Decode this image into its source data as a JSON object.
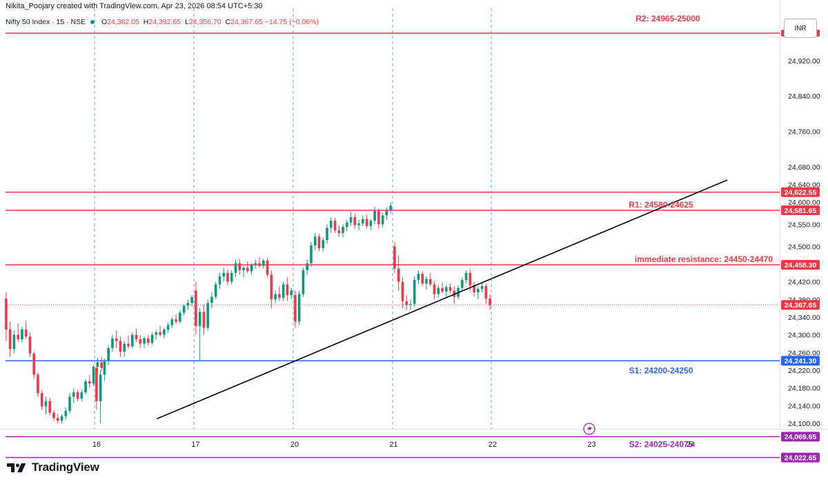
{
  "header": {
    "credit": "Nikita_Poojary created with TradingView.com, Apr 23, 2026 08:54 UTC+5:30",
    "symbol": "Nifty 50 Index · 15 · NSE",
    "ohlc": [
      {
        "k": "O",
        "v": "24,382.05"
      },
      {
        "k": "H",
        "v": "24,392.65"
      },
      {
        "k": "L",
        "v": "24,356.70"
      },
      {
        "k": "C",
        "v": "24,367.65"
      }
    ],
    "change": "−14.75 (−0.06%)"
  },
  "currency": "INR",
  "brand": {
    "name": "TradingView",
    "logo_icon": "tradingview-logo-icon"
  },
  "colors": {
    "up": "#089981",
    "down": "#F23645",
    "resistance": "#F23645",
    "support": "#2962FF",
    "support2": "#9C27B0",
    "trend": "#000000",
    "session": "#2962FF"
  },
  "chart_data": {
    "type": "candlestick",
    "interval": "15",
    "ylim": [
      24000,
      25000
    ],
    "price_ticks": [
      "24,100.00",
      "24,140.00",
      "24,180.00",
      "24,220.00",
      "24,260.00",
      "24,300.00",
      "24,340.00",
      "24,380.00",
      "24,420.00",
      "24,500.00",
      "24,550.00",
      "24,600.00",
      "24,640.00",
      "24,680.00",
      "24,760.00",
      "24,840.00",
      "24,920.00"
    ],
    "date_ticks": [
      "16",
      "17",
      "20",
      "21",
      "22",
      "23",
      "24"
    ],
    "levels": [
      {
        "price": 24982,
        "tag": "",
        "label": "R2: 24965-25000",
        "color": "#F23645",
        "label_pos": "top"
      },
      {
        "price": 24622.55,
        "tag": "24,622.55",
        "label": "",
        "color": "#F23645"
      },
      {
        "price": 24581.65,
        "tag": "24,581.65",
        "label": "R1: 24580-24625",
        "color": "#F23645",
        "label_pos": "above"
      },
      {
        "price": 24458.3,
        "tag": "24,458.30",
        "label": "immediate resistance: 24450-24470",
        "color": "#F23645",
        "label_pos": "above"
      },
      {
        "price": 24241.3,
        "tag": "24,241.30",
        "label": "S1: 24200-24250",
        "color": "#2962FF",
        "label_pos": "below"
      },
      {
        "price": 24069.65,
        "tag": "24,069.65",
        "label": "",
        "color": "#9C27B0"
      },
      {
        "price": 24022.65,
        "tag": "24,022.65",
        "label": "S2: 24025-24075",
        "color": "#9C27B0",
        "label_pos": "above"
      }
    ],
    "last_price": {
      "price": 24367.65,
      "tag": "24,367.65"
    },
    "trendline": [
      {
        "date": "Apr 16 13:00",
        "price": 24110
      },
      {
        "date": "Apr 24 10:30",
        "price": 24650
      }
    ],
    "sessions": [
      {
        "day": "16",
        "candles": [
          [
            24382,
            24396,
            24286,
            24312
          ],
          [
            24312,
            24330,
            24250,
            24268
          ],
          [
            24268,
            24310,
            24258,
            24300
          ],
          [
            24300,
            24326,
            24284,
            24290
          ],
          [
            24290,
            24318,
            24282,
            24312
          ],
          [
            24312,
            24332,
            24290,
            24296
          ],
          [
            24296,
            24306,
            24250,
            24258
          ],
          [
            24258,
            24262,
            24200,
            24210
          ],
          [
            24210,
            24215,
            24160,
            24168
          ],
          [
            24168,
            24175,
            24130,
            24138
          ],
          [
            24138,
            24160,
            24120,
            24150
          ],
          [
            24150,
            24158,
            24118,
            24124
          ],
          [
            24124,
            24130,
            24105,
            24112
          ],
          [
            24112,
            24122,
            24100,
            24106
          ],
          [
            24106,
            24120,
            24100,
            24116
          ],
          [
            24116,
            24136,
            24108,
            24128
          ],
          [
            24128,
            24168,
            24122,
            24160
          ],
          [
            24160,
            24180,
            24146,
            24170
          ],
          [
            24170,
            24176,
            24150,
            24156
          ],
          [
            24156,
            24176,
            24150,
            24170
          ],
          [
            24170,
            24200,
            24165,
            24195
          ],
          [
            24195,
            24210,
            24180,
            24190
          ],
          [
            24190,
            24232,
            24185,
            24228
          ],
          [
            24228,
            24248,
            24210,
            24238
          ],
          [
            24238,
            24250,
            24218,
            24225
          ]
        ]
      },
      {
        "day": "17",
        "candles": [
          [
            24225,
            24238,
            24130,
            24150
          ],
          [
            24150,
            24220,
            24100,
            24210
          ],
          [
            24210,
            24246,
            24196,
            24240
          ],
          [
            24240,
            24276,
            24232,
            24270
          ],
          [
            24270,
            24300,
            24262,
            24292
          ],
          [
            24292,
            24310,
            24270,
            24286
          ],
          [
            24286,
            24296,
            24250,
            24262
          ],
          [
            24262,
            24286,
            24250,
            24280
          ],
          [
            24280,
            24298,
            24268,
            24274
          ],
          [
            24274,
            24306,
            24270,
            24300
          ],
          [
            24300,
            24314,
            24284,
            24290
          ],
          [
            24290,
            24300,
            24270,
            24280
          ],
          [
            24280,
            24296,
            24270,
            24292
          ],
          [
            24292,
            24300,
            24276,
            24282
          ],
          [
            24282,
            24306,
            24278,
            24300
          ],
          [
            24300,
            24310,
            24290,
            24306
          ],
          [
            24306,
            24320,
            24296,
            24300
          ],
          [
            24300,
            24316,
            24292,
            24312
          ],
          [
            24312,
            24328,
            24304,
            24322
          ],
          [
            24322,
            24340,
            24316,
            24335
          ],
          [
            24335,
            24346,
            24324,
            24330
          ],
          [
            24330,
            24356,
            24326,
            24350
          ],
          [
            24350,
            24370,
            24344,
            24366
          ],
          [
            24366,
            24380,
            24356,
            24372
          ],
          [
            24372,
            24390,
            24364,
            24385
          ]
        ]
      },
      {
        "day": "20",
        "candles": [
          [
            24400,
            24420,
            24300,
            24320
          ],
          [
            24320,
            24360,
            24240,
            24352
          ],
          [
            24352,
            24368,
            24300,
            24316
          ],
          [
            24316,
            24380,
            24310,
            24372
          ],
          [
            24372,
            24396,
            24360,
            24386
          ],
          [
            24386,
            24420,
            24380,
            24414
          ],
          [
            24414,
            24440,
            24404,
            24432
          ],
          [
            24432,
            24452,
            24420,
            24440
          ],
          [
            24440,
            24448,
            24412,
            24420
          ],
          [
            24420,
            24446,
            24414,
            24440
          ],
          [
            24440,
            24470,
            24432,
            24462
          ],
          [
            24462,
            24472,
            24436,
            24446
          ],
          [
            24446,
            24456,
            24430,
            24452
          ],
          [
            24452,
            24466,
            24440,
            24444
          ],
          [
            24444,
            24462,
            24436,
            24458
          ],
          [
            24458,
            24470,
            24450,
            24462
          ],
          [
            24462,
            24476,
            24452,
            24456
          ],
          [
            24456,
            24472,
            24450,
            24468
          ],
          [
            24468,
            24474,
            24430,
            24436
          ],
          [
            24436,
            24446,
            24360,
            24380
          ],
          [
            24380,
            24400,
            24372,
            24392
          ],
          [
            24392,
            24410,
            24376,
            24384
          ],
          [
            24384,
            24420,
            24376,
            24414
          ],
          [
            24414,
            24430,
            24376,
            24390
          ],
          [
            24390,
            24406,
            24380,
            24400
          ]
        ]
      },
      {
        "day": "21",
        "candles": [
          [
            24390,
            24400,
            24316,
            24330
          ],
          [
            24330,
            24400,
            24322,
            24392
          ],
          [
            24392,
            24452,
            24386,
            24446
          ],
          [
            24446,
            24470,
            24436,
            24462
          ],
          [
            24462,
            24510,
            24454,
            24502
          ],
          [
            24502,
            24530,
            24492,
            24522
          ],
          [
            24522,
            24528,
            24490,
            24496
          ],
          [
            24496,
            24520,
            24488,
            24514
          ],
          [
            24514,
            24550,
            24506,
            24542
          ],
          [
            24542,
            24566,
            24530,
            24558
          ],
          [
            24558,
            24564,
            24530,
            24536
          ],
          [
            24536,
            24548,
            24522,
            24530
          ],
          [
            24530,
            24550,
            24520,
            24544
          ],
          [
            24544,
            24560,
            24534,
            24554
          ],
          [
            24554,
            24578,
            24546,
            24566
          ],
          [
            24566,
            24574,
            24540,
            24548
          ],
          [
            24548,
            24560,
            24536,
            24552
          ],
          [
            24552,
            24570,
            24546,
            24562
          ],
          [
            24562,
            24572,
            24540,
            24546
          ],
          [
            24546,
            24562,
            24536,
            24558
          ],
          [
            24558,
            24590,
            24550,
            24580
          ],
          [
            24580,
            24586,
            24540,
            24550
          ],
          [
            24550,
            24576,
            24544,
            24570
          ],
          [
            24570,
            24588,
            24560,
            24582
          ],
          [
            24582,
            24600,
            24574,
            24592
          ]
        ]
      },
      {
        "day": "22",
        "candles": [
          [
            24500,
            24510,
            24440,
            24450
          ],
          [
            24450,
            24480,
            24400,
            24420
          ],
          [
            24420,
            24430,
            24360,
            24376
          ],
          [
            24376,
            24390,
            24356,
            24368
          ],
          [
            24368,
            24380,
            24356,
            24370
          ],
          [
            24370,
            24432,
            24364,
            24424
          ],
          [
            24424,
            24446,
            24414,
            24438
          ],
          [
            24438,
            24444,
            24410,
            24416
          ],
          [
            24416,
            24432,
            24402,
            24426
          ],
          [
            24426,
            24440,
            24410,
            24414
          ],
          [
            24414,
            24422,
            24380,
            24392
          ],
          [
            24392,
            24412,
            24384,
            24406
          ],
          [
            24406,
            24418,
            24394,
            24398
          ],
          [
            24398,
            24412,
            24386,
            24408
          ],
          [
            24408,
            24416,
            24394,
            24400
          ],
          [
            24400,
            24410,
            24370,
            24386
          ],
          [
            24386,
            24412,
            24380,
            24406
          ],
          [
            24406,
            24430,
            24398,
            24424
          ],
          [
            24424,
            24446,
            24416,
            24440
          ],
          [
            24440,
            24448,
            24400,
            24412
          ],
          [
            24412,
            24420,
            24386,
            24396
          ],
          [
            24396,
            24410,
            24380,
            24404
          ],
          [
            24404,
            24418,
            24396,
            24410
          ],
          [
            24410,
            24416,
            24370,
            24382
          ],
          [
            24382,
            24392,
            24356,
            24367
          ]
        ]
      }
    ]
  }
}
